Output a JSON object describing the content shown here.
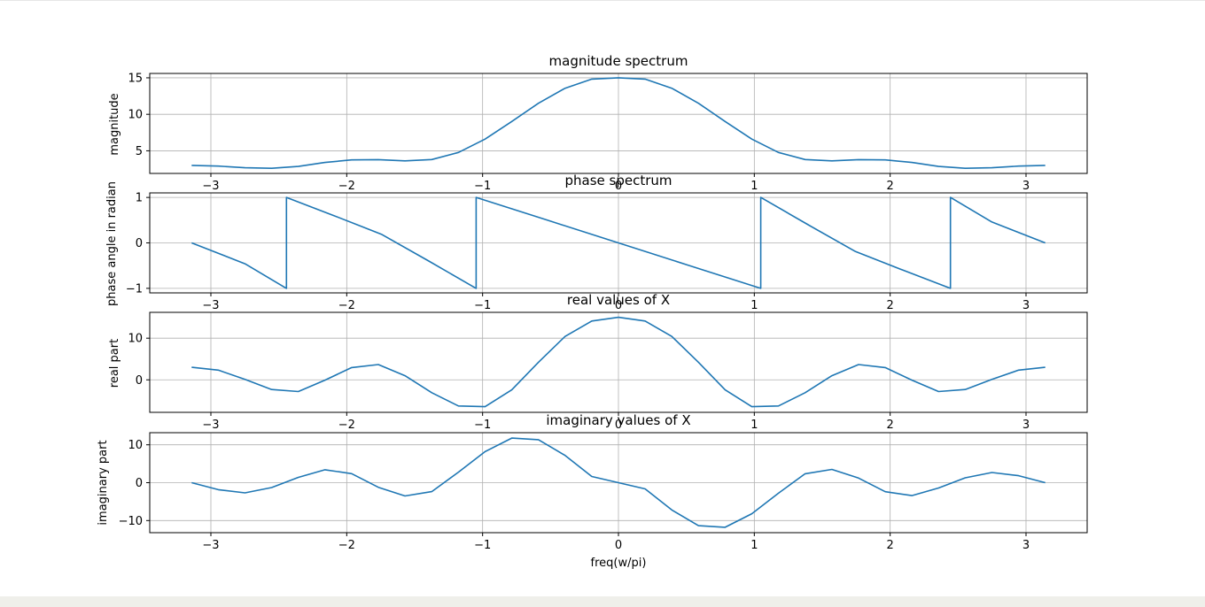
{
  "figure": {
    "line_color": "#1f77b4",
    "grid_color": "#b0b0b0",
    "xlabel": "freq(w/pi)"
  },
  "chart_data": [
    {
      "type": "line",
      "title": "magnitude spectrum",
      "xlabel": "",
      "ylabel": "magnitude",
      "xlim": [
        -3.45,
        3.45
      ],
      "ylim": [
        1.9,
        15.6
      ],
      "xticks": [
        -3,
        -2,
        -1,
        0,
        1,
        2,
        3
      ],
      "yticks": [
        5,
        10,
        15
      ],
      "grid": true,
      "x": [
        -3.1416,
        -2.9452,
        -2.7489,
        -2.5525,
        -2.3562,
        -2.1598,
        -1.9635,
        -1.7671,
        -1.5708,
        -1.3744,
        -1.1781,
        -0.9817,
        -0.7854,
        -0.589,
        -0.3927,
        -0.1963,
        0,
        0.1963,
        0.3927,
        0.589,
        0.7854,
        0.9817,
        1.1781,
        1.3744,
        1.5708,
        1.7671,
        1.9635,
        2.1598,
        2.3562,
        2.5525,
        2.7489,
        2.9452,
        3.1416
      ],
      "y": [
        3.0,
        2.91,
        2.68,
        2.6,
        2.86,
        3.4,
        3.76,
        3.79,
        3.62,
        3.8,
        4.77,
        6.61,
        9.02,
        11.52,
        13.58,
        14.83,
        15.0,
        14.83,
        13.58,
        11.52,
        9.02,
        6.61,
        4.77,
        3.8,
        3.62,
        3.79,
        3.76,
        3.4,
        2.86,
        2.6,
        2.68,
        2.91,
        3.0
      ]
    },
    {
      "type": "line",
      "title": "phase spectrum",
      "xlabel": "",
      "ylabel": "phase angle in radian",
      "xlim": [
        -3.45,
        3.45
      ],
      "ylim": [
        -1.1,
        1.1
      ],
      "xticks": [
        -3,
        -2,
        -1,
        0,
        1,
        2,
        3
      ],
      "yticks": [
        -1,
        0,
        1
      ],
      "grid": true,
      "x": [
        -3.1416,
        -2.7489,
        -2.4435,
        -2.4435,
        -2.0944,
        -1.7453,
        -1.3963,
        -1.0472,
        -1.0472,
        -0.5236,
        0,
        0.5236,
        1.0472,
        1.0472,
        1.3963,
        1.7453,
        2.0944,
        2.4435,
        2.4435,
        2.7489,
        3.1416
      ],
      "y": [
        0,
        -0.46,
        -1.0,
        1.0,
        0.6,
        0.19,
        -0.4,
        -1.0,
        1.0,
        0.5,
        0,
        -0.5,
        -1.0,
        1.0,
        0.4,
        -0.19,
        -0.6,
        -1.0,
        1.0,
        0.46,
        0
      ]
    },
    {
      "type": "line",
      "title": "real values of X",
      "xlabel": "",
      "ylabel": "real part",
      "xlim": [
        -3.45,
        3.45
      ],
      "ylim": [
        -7.8,
        16.2
      ],
      "xticks": [
        -3,
        -2,
        -1,
        0,
        1,
        2,
        3
      ],
      "yticks": [
        0,
        10
      ],
      "grid": true,
      "x": [
        -3.1416,
        -2.9452,
        -2.7489,
        -2.5525,
        -2.3562,
        -2.1598,
        -1.9635,
        -1.7671,
        -1.5708,
        -1.3744,
        -1.1781,
        -0.9817,
        -0.7854,
        -0.589,
        -0.3927,
        -0.1963,
        0,
        0.1963,
        0.3927,
        0.589,
        0.7854,
        0.9817,
        1.1781,
        1.3744,
        1.5708,
        1.7671,
        1.9635,
        2.1598,
        2.3562,
        2.5525,
        2.7489,
        2.9452,
        3.1416
      ],
      "y": [
        3.0,
        2.33,
        0.11,
        -2.33,
        -2.8,
        -0.06,
        2.95,
        3.67,
        1.0,
        -3.09,
        -6.27,
        -6.44,
        -2.41,
        4.22,
        10.43,
        14.12,
        15.0,
        14.12,
        10.43,
        4.22,
        -2.41,
        -6.44,
        -6.27,
        -3.09,
        1.0,
        3.67,
        2.95,
        -0.06,
        -2.8,
        -2.33,
        0.11,
        2.33,
        3.0
      ]
    },
    {
      "type": "line",
      "title": "imaginary values of X",
      "xlabel": "freq(w/pi)",
      "ylabel": "imaginary part",
      "xlim": [
        -3.45,
        3.45
      ],
      "ylim": [
        -13.2,
        13.2
      ],
      "xticks": [
        -3,
        -2,
        -1,
        0,
        1,
        2,
        3
      ],
      "yticks": [
        -10,
        0,
        10
      ],
      "grid": true,
      "x": [
        -3.1416,
        -2.9452,
        -2.7489,
        -2.5525,
        -2.3562,
        -2.1598,
        -1.9635,
        -1.7671,
        -1.5708,
        -1.3744,
        -1.1781,
        -0.9817,
        -0.7854,
        -0.589,
        -0.3927,
        -0.1963,
        0,
        0.1963,
        0.3927,
        0.589,
        0.7854,
        0.9817,
        1.1781,
        1.3744,
        1.5708,
        1.7671,
        1.9635,
        2.1598,
        2.3562,
        2.5525,
        2.7489,
        2.9452,
        3.1416
      ],
      "y": [
        0,
        -1.84,
        -2.68,
        -1.28,
        1.41,
        3.4,
        2.38,
        -1.21,
        -3.5,
        -2.36,
        2.79,
        8.21,
        11.78,
        11.35,
        7.2,
        1.63,
        0,
        -1.63,
        -7.2,
        -11.35,
        -11.78,
        -8.21,
        -2.79,
        2.36,
        3.5,
        1.21,
        -2.38,
        -3.4,
        -1.41,
        1.28,
        2.68,
        1.84,
        0
      ]
    }
  ]
}
